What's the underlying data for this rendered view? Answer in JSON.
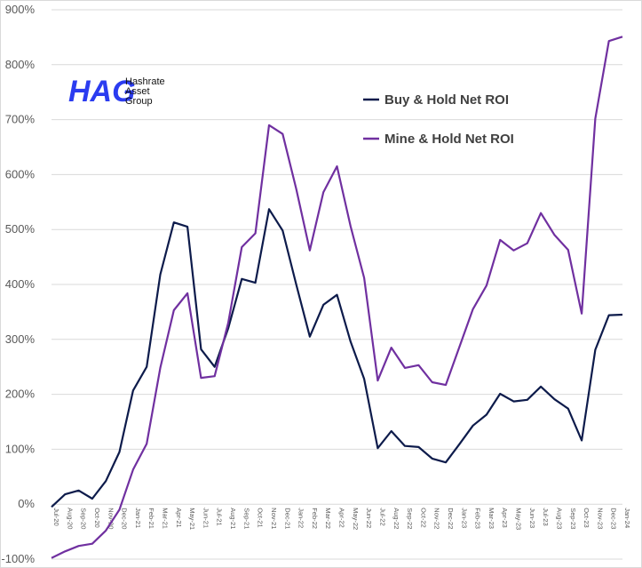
{
  "logo": {
    "mark": "HAG",
    "lines": [
      "Hashrate",
      "Asset",
      "Group"
    ]
  },
  "chart_data": {
    "type": "line",
    "title": "",
    "xlabel": "",
    "ylabel": "",
    "ylim": [
      -100,
      900
    ],
    "yticks": [
      -100,
      0,
      100,
      200,
      300,
      400,
      500,
      600,
      700,
      800,
      900
    ],
    "ytick_labels": [
      "-100%",
      "0%",
      "100%",
      "200%",
      "300%",
      "400%",
      "500%",
      "600%",
      "700%",
      "800%",
      "900%"
    ],
    "grid": true,
    "legend_position": "upper-left",
    "categories": [
      "Jul-20",
      "Aug-20",
      "Sep-20",
      "Oct-20",
      "Nov-20",
      "Dec-20",
      "Jan-21",
      "Feb-21",
      "Mar-21",
      "Apr-21",
      "May-21",
      "Jun-21",
      "Jul-21",
      "Aug-21",
      "Sep-21",
      "Oct-21",
      "Nov-21",
      "Dec-21",
      "Jan-22",
      "Feb-22",
      "Mar-22",
      "Apr-22",
      "May-22",
      "Jun-22",
      "Jul-22",
      "Aug-22",
      "Sep-22",
      "Oct-22",
      "Nov-22",
      "Dec-22",
      "Jan-23",
      "Feb-23",
      "Mar-23",
      "Apr-23",
      "May-23",
      "Jun-23",
      "Jul-23",
      "Aug-23",
      "Sep-23",
      "Oct-23",
      "Nov-23",
      "Dec-23",
      "Jan-24"
    ],
    "series": [
      {
        "name": "Buy & Hold Net ROI",
        "color": "#0d1b4b",
        "values": [
          -5,
          18,
          25,
          10,
          42,
          95,
          207,
          250,
          418,
          513,
          505,
          282,
          250,
          320,
          410,
          403,
          537,
          498,
          400,
          305,
          363,
          381,
          296,
          228,
          102,
          133,
          106,
          104,
          83,
          76,
          109,
          143,
          163,
          201,
          187,
          190,
          214,
          191,
          174,
          116,
          281,
          344,
          345
        ]
      },
      {
        "name": "Mine & Hold Net ROI",
        "color": "#7030a0",
        "values": [
          -98,
          -86,
          -76,
          -72,
          -48,
          -10,
          63,
          110,
          248,
          353,
          384,
          230,
          233,
          330,
          468,
          493,
          690,
          674,
          574,
          462,
          568,
          615,
          506,
          412,
          225,
          285,
          248,
          253,
          222,
          217,
          286,
          355,
          398,
          481,
          462,
          475,
          530,
          490,
          463,
          347,
          702,
          843,
          851
        ]
      }
    ]
  }
}
